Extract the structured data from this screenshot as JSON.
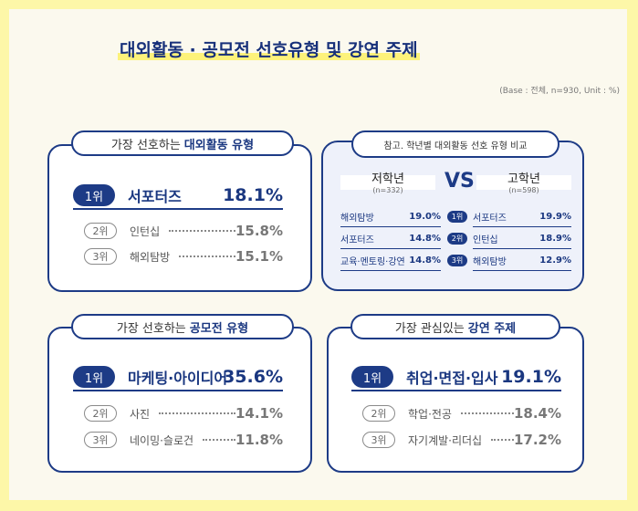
{
  "title": "대외활동 · 공모전 선호유형 및 강연 주제",
  "base_note": "(Base : 전체, n=930, Unit : %)",
  "activity": {
    "header_prefix": "가장 선호하는",
    "header_bold": "대외활동 유형",
    "items": [
      {
        "rank": "1위",
        "name": "서포터즈",
        "pct": "18.1%"
      },
      {
        "rank": "2위",
        "name": "인턴십",
        "pct": "15.8%"
      },
      {
        "rank": "3위",
        "name": "해외탐방",
        "pct": "15.1%"
      }
    ]
  },
  "compare": {
    "header": "참고. 학년별 대외활동 선호 유형 비교",
    "left": {
      "title": "저학년",
      "n": "(n=332)"
    },
    "right": {
      "title": "고학년",
      "n": "(n=598)"
    },
    "vs": "VS",
    "ranks": [
      "1위",
      "2위",
      "3위"
    ],
    "left_items": [
      {
        "name": "해외탐방",
        "pct": "19.0%"
      },
      {
        "name": "서포터즈",
        "pct": "14.8%"
      },
      {
        "name": "교육·멘토링·강연",
        "pct": "14.8%"
      }
    ],
    "right_items": [
      {
        "name": "서포터즈",
        "pct": "19.9%"
      },
      {
        "name": "인턴십",
        "pct": "18.9%"
      },
      {
        "name": "해외탐방",
        "pct": "12.9%"
      }
    ]
  },
  "contest": {
    "header_prefix": "가장 선호하는",
    "header_bold": "공모전 유형",
    "items": [
      {
        "rank": "1위",
        "name": "마케팅·아이디어",
        "pct": "35.6%"
      },
      {
        "rank": "2위",
        "name": "사진",
        "pct": "14.1%"
      },
      {
        "rank": "3위",
        "name": "네이밍·슬로건",
        "pct": "11.8%"
      }
    ]
  },
  "lecture": {
    "header_prefix": "가장 관심있는",
    "header_bold": "강연 주제",
    "items": [
      {
        "rank": "1위",
        "name": "취업·면접·입사",
        "pct": "19.1%"
      },
      {
        "rank": "2위",
        "name": "학업·전공",
        "pct": "18.4%"
      },
      {
        "rank": "3위",
        "name": "자기계발·리더십",
        "pct": "17.2%"
      }
    ]
  },
  "colors": {
    "navy": "#1d3b86",
    "yellow": "#fdf7a8",
    "highlight": "#fdf27a"
  }
}
